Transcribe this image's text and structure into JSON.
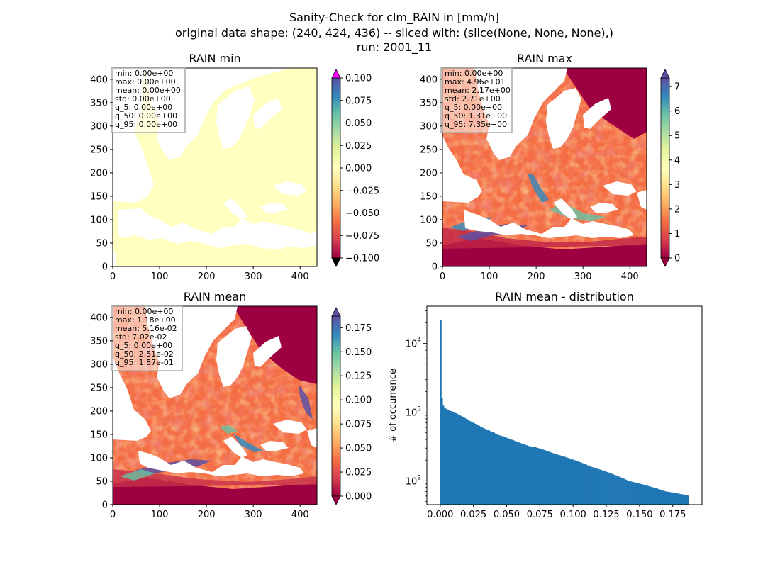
{
  "figure": {
    "title_lines": [
      "Sanity-Check for clm_RAIN in [mm/h]",
      "original data shape: (240, 424, 436) -- sliced with: (slice(None, None, None),)",
      "run: 2001_11"
    ]
  },
  "colors": {
    "colormap": [
      "#9e0142",
      "#d53e4f",
      "#f46d43",
      "#fdae61",
      "#fee08b",
      "#ffffbf",
      "#e6f598",
      "#abdda4",
      "#66c2a5",
      "#3288bd",
      "#5e4fa2"
    ],
    "min_fill": "#ffffbf",
    "over_extend_min": "#ff00ff",
    "under_extend_min": "#000000",
    "hist_bar": "#1f77b4"
  },
  "chart_data": [
    {
      "type": "heatmap",
      "title": "RAIN min",
      "x_ticks": [
        "0",
        "100",
        "200",
        "300",
        "400"
      ],
      "y_ticks": [
        "0",
        "50",
        "100",
        "150",
        "200",
        "250",
        "300",
        "350",
        "400"
      ],
      "xlim": [
        0,
        436
      ],
      "ylim": [
        0,
        424
      ],
      "stats": [
        "min: 0.00e+00",
        "max: 0.00e+00",
        "mean: 0.00e+00",
        "std: 0.00e+00",
        "q_5: 0.00e+00",
        "q_50: 0.00e+00",
        "q_95: 0.00e+00"
      ],
      "colorbar_ticks": [
        "0.100",
        "0.075",
        "0.050",
        "0.025",
        "0.000",
        "−0.025",
        "−0.050",
        "−0.075",
        "−0.100"
      ],
      "colorbar_range": [
        -0.1,
        0.1
      ]
    },
    {
      "type": "heatmap",
      "title": "RAIN max",
      "x_ticks": [
        "0",
        "100",
        "200",
        "300",
        "400"
      ],
      "y_ticks": [
        "0",
        "50",
        "100",
        "150",
        "200",
        "250",
        "300",
        "350",
        "400"
      ],
      "xlim": [
        0,
        436
      ],
      "ylim": [
        0,
        424
      ],
      "stats": [
        "min: 0.00e+00",
        "max: 4.96e+01",
        "mean: 2.17e+00",
        "std: 2.71e+00",
        "q_5: 0.00e+00",
        "q_50: 1.31e+00",
        "q_95: 7.35e+00"
      ],
      "colorbar_ticks": [
        "7",
        "6",
        "5",
        "4",
        "3",
        "2",
        "1",
        "0"
      ],
      "colorbar_range": [
        0,
        7.35
      ]
    },
    {
      "type": "heatmap",
      "title": "RAIN mean",
      "x_ticks": [
        "0",
        "100",
        "200",
        "300",
        "400"
      ],
      "y_ticks": [
        "0",
        "50",
        "100",
        "150",
        "200",
        "250",
        "300",
        "350",
        "400"
      ],
      "xlim": [
        0,
        436
      ],
      "ylim": [
        0,
        424
      ],
      "stats": [
        "min: 0.00e+00",
        "max: 1.18e+00",
        "mean: 5.16e-02",
        "std: 7.02e-02",
        "q_5: 0.00e+00",
        "q_50: 2.51e-02",
        "q_95: 1.87e-01"
      ],
      "colorbar_ticks": [
        "0.175",
        "0.150",
        "0.125",
        "0.100",
        "0.075",
        "0.050",
        "0.025",
        "0.000"
      ],
      "colorbar_range": [
        0,
        0.187
      ]
    },
    {
      "type": "bar",
      "title": "RAIN mean - distribution",
      "ylabel": "# of occurrence",
      "x_ticks": [
        "0.000",
        "0.025",
        "0.050",
        "0.075",
        "0.100",
        "0.125",
        "0.150",
        "0.175"
      ],
      "y_ticks": [
        "10^2",
        "10^3",
        "10^4"
      ],
      "xlim": [
        -0.01,
        0.197
      ],
      "ylim": [
        45,
        35000
      ],
      "log_y": true,
      "hist_range": [
        0.0,
        0.187
      ],
      "bins": 200,
      "counts": [
        22000,
        1600,
        1250,
        1180,
        1130,
        1100,
        1080,
        1060,
        1040,
        1020,
        1000,
        990,
        970,
        950,
        930,
        910,
        890,
        870,
        850,
        830,
        810,
        790,
        770,
        750,
        735,
        720,
        705,
        690,
        675,
        660,
        645,
        630,
        615,
        600,
        590,
        580,
        570,
        560,
        550,
        540,
        530,
        520,
        510,
        500,
        490,
        480,
        470,
        460,
        455,
        450,
        445,
        440,
        432,
        425,
        418,
        411,
        404,
        398,
        392,
        386,
        380,
        374,
        368,
        362,
        356,
        350,
        345,
        340,
        335,
        330,
        325,
        320,
        318,
        316,
        314,
        312,
        310,
        306,
        302,
        298,
        294,
        290,
        286,
        282,
        278,
        274,
        270,
        266,
        262,
        258,
        254,
        250,
        247,
        244,
        241,
        238,
        235,
        232,
        229,
        226,
        223,
        220,
        217,
        214,
        211,
        208,
        205,
        202,
        199,
        196,
        193,
        190,
        187,
        184,
        181,
        178,
        175,
        172,
        169,
        166,
        163,
        160,
        158,
        156,
        154,
        152,
        150,
        148,
        146,
        144,
        142,
        140,
        138,
        136,
        134,
        132,
        130,
        128,
        126,
        124,
        122,
        120,
        118,
        116,
        114,
        112,
        110,
        108,
        106,
        104,
        102,
        100,
        99,
        98,
        97,
        96,
        95,
        94,
        93,
        92,
        91,
        90,
        89,
        88,
        87,
        86,
        85,
        84,
        83,
        82,
        81,
        80,
        79,
        78,
        77,
        76,
        75,
        74,
        73,
        72,
        71,
        70,
        70,
        69,
        69,
        68,
        68,
        67,
        67,
        66,
        66,
        65,
        65,
        64,
        64,
        63,
        63,
        62,
        62,
        61
      ]
    }
  ]
}
